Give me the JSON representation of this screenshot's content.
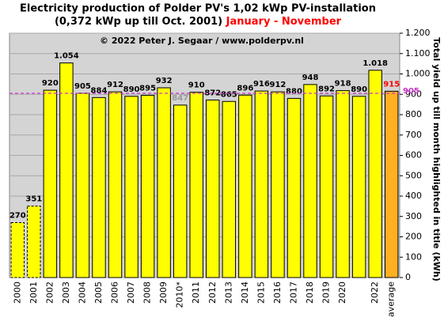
{
  "chart_data": {
    "type": "bar",
    "title": "Electricity production  of Polder PV's 1,02 kWp PV-installation",
    "subtitle": "(0,372 kWp up till Oct. 2001)",
    "period": "January - November",
    "credit": "© 2022 Peter J. Segaar / www.polderpv.nl",
    "y_label": "Total yield up till month highlighted in title (kWh)",
    "categories": [
      "2000",
      "2001",
      "2002",
      "2003",
      "2004",
      "2005",
      "2006",
      "2007",
      "2008",
      "2009",
      "2010*",
      "2011",
      "2012",
      "2013",
      "2014",
      "2015",
      "2016",
      "2017",
      "2018",
      "2019",
      "2020",
      null,
      "2022",
      "average"
    ],
    "values": [
      270,
      351,
      920,
      1054,
      905,
      884,
      912,
      890,
      895,
      932,
      847,
      910,
      872,
      865,
      896,
      916,
      912,
      880,
      948,
      892,
      918,
      890,
      1018,
      915
    ],
    "value_labels": [
      "270",
      "351",
      "920",
      "1.054",
      "905",
      "884",
      "912",
      "890",
      "895",
      "932",
      "847",
      "910",
      "872",
      "865",
      "896",
      "916",
      "912",
      "880",
      "948",
      "892",
      "918",
      "890",
      "1.018",
      "915"
    ],
    "colors": [
      "#ffff00",
      "#ffff00",
      "#ffff00",
      "#ffff00",
      "#ffff00",
      "#ffff00",
      "#ffff00",
      "#ffff00",
      "#ffff00",
      "#ffff00",
      "#ffff00",
      "#ffff00",
      "#ffff00",
      "#ffff00",
      "#ffff00",
      "#ffff00",
      "#ffff00",
      "#ffff00",
      "#ffff00",
      "#ffff00",
      "#ffff00",
      "#ffff00",
      "#ffff00",
      "#ffb020"
    ],
    "dashed": [
      true,
      true,
      false,
      false,
      false,
      false,
      false,
      false,
      false,
      false,
      false,
      false,
      false,
      false,
      false,
      false,
      false,
      false,
      false,
      false,
      false,
      false,
      false,
      false
    ],
    "value_label_colors": [
      "#000",
      "#000",
      "#000",
      "#000",
      "#000",
      "#000",
      "#000",
      "#000",
      "#000",
      "#000",
      "#9a9a9a",
      "#000",
      "#000",
      "#000",
      "#000",
      "#000",
      "#000",
      "#000",
      "#000",
      "#000",
      "#000",
      "#000",
      "#000",
      "#ff0000"
    ],
    "reference_line": 905,
    "reference_color": "#cc33cc",
    "period_color": "#ff0000",
    "ylim": [
      0,
      1200
    ],
    "yticks": [
      0,
      100,
      200,
      300,
      400,
      500,
      600,
      700,
      800,
      900,
      {
        "value": 1000,
        "label": "1.000"
      },
      {
        "value": 1100,
        "label": "1.100"
      },
      {
        "value": 1200,
        "label": "1.200"
      }
    ],
    "grid": true
  }
}
